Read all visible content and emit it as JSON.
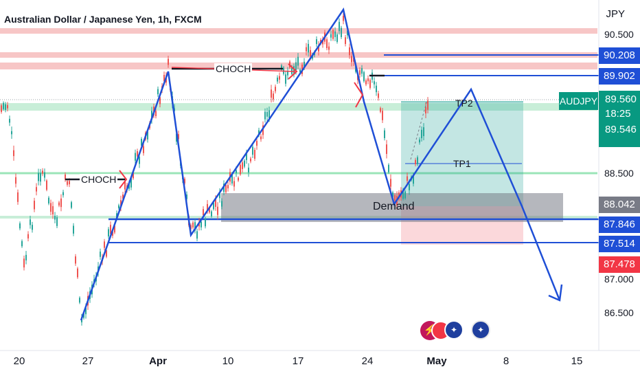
{
  "header": {
    "title": "Australian Dollar / Japanese Yen, 1h, FXCM",
    "currency": "JPY"
  },
  "price_axis": {
    "ticks": [
      "90.500",
      "88.500",
      "87.000",
      "86.500"
    ]
  },
  "price_tags": [
    {
      "value": "90.208",
      "color": "#1f4fd6"
    },
    {
      "value": "89.902",
      "color": "#1f4fd6"
    },
    {
      "value": "88.042",
      "color": "#787b86"
    },
    {
      "value": "87.846",
      "color": "#1f4fd6"
    },
    {
      "value": "87.514",
      "color": "#1f4fd6"
    },
    {
      "value": "87.478",
      "color": "#f23645"
    }
  ],
  "symbol_tag": {
    "symbol": "AUDJPY",
    "price": "89.560",
    "countdown": "18:25",
    "sub_price": "89.546",
    "color": "#089981"
  },
  "time_axis": {
    "labels": [
      {
        "text": "20",
        "bold": false
      },
      {
        "text": "27",
        "bold": false
      },
      {
        "text": "Apr",
        "bold": true
      },
      {
        "text": "10",
        "bold": false
      },
      {
        "text": "17",
        "bold": false
      },
      {
        "text": "24",
        "bold": false
      },
      {
        "text": "May",
        "bold": true
      },
      {
        "text": "8",
        "bold": false
      },
      {
        "text": "15",
        "bold": false
      }
    ]
  },
  "annotations": {
    "choch_1": "CHOCH",
    "choch_2": "CHOCH",
    "tp1": "TP1",
    "tp2": "TP2",
    "demand": "Demand"
  },
  "colors": {
    "bull": "#26a69a",
    "bear": "#ef5350",
    "resistance_zone": "#f7c6c6",
    "support_zone": "#c8eed8",
    "drawing": "#1f4fd6"
  }
}
